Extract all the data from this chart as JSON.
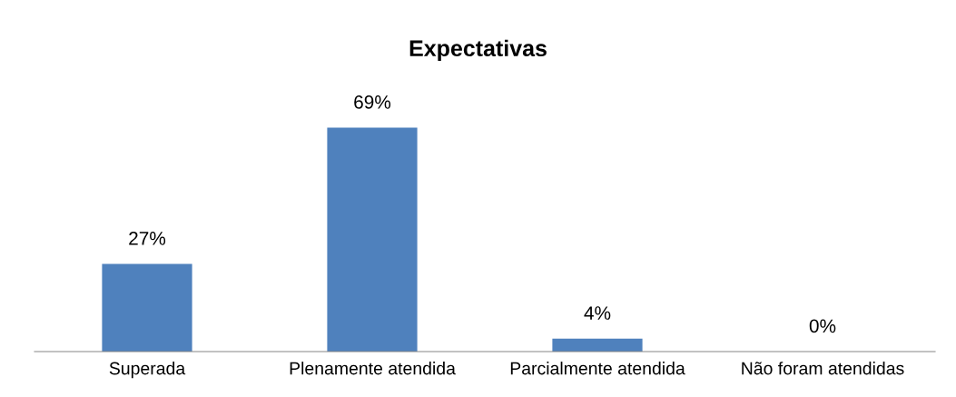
{
  "chart_data": {
    "type": "bar",
    "title": "Expectativas",
    "categories": [
      "Superada",
      "Plenamente atendida",
      "Parcialmente atendida",
      "Não foram atendidas"
    ],
    "values": [
      27,
      69,
      4,
      0
    ],
    "color": "#4f81bd",
    "value_labels": [
      "27%",
      "69%",
      "4%",
      "0%"
    ],
    "grid": false,
    "legend": false
  }
}
